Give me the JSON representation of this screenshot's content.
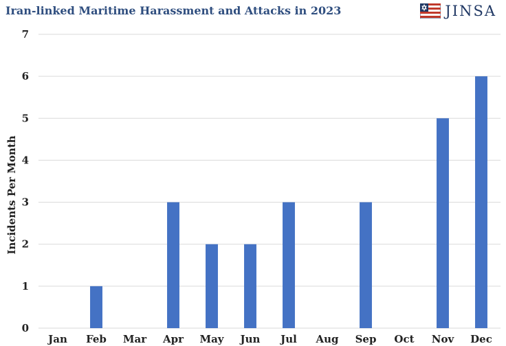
{
  "header": {
    "title": "Iran-linked Maritime Harassment and Attacks in 2023",
    "logo_text": "JINSA"
  },
  "colors": {
    "bar": "#4472c4",
    "title": "#2f4e7f",
    "grid": "#d9d9d9"
  },
  "chart_data": {
    "type": "bar",
    "title": "Iran-linked Maritime Harassment and Attacks in 2023",
    "xlabel": "",
    "ylabel": "Incidents Per Month",
    "categories": [
      "Jan",
      "Feb",
      "Mar",
      "Apr",
      "May",
      "Jun",
      "Jul",
      "Aug",
      "Sep",
      "Oct",
      "Nov",
      "Dec"
    ],
    "values": [
      0,
      1,
      0,
      3,
      2,
      2,
      3,
      0,
      3,
      0,
      5,
      6
    ],
    "ylim": [
      0,
      7
    ],
    "yticks": [
      0,
      1,
      2,
      3,
      4,
      5,
      6,
      7
    ],
    "grid": true,
    "legend": "none"
  }
}
